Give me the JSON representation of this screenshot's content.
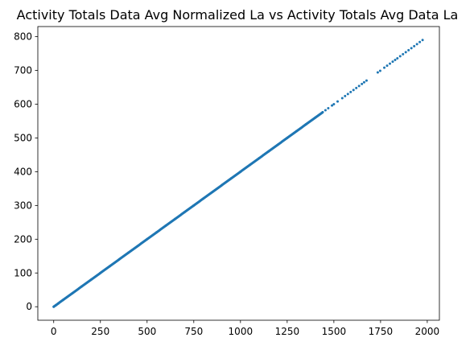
{
  "chart_data": {
    "type": "scatter",
    "title": "Activity Totals Data Avg Normalized La vs Activity Totals Avg Data La",
    "xlabel": "",
    "ylabel": "",
    "xlim": [
      -85,
      2065
    ],
    "ylim": [
      -40,
      830
    ],
    "xticks": [
      0,
      250,
      500,
      750,
      1000,
      1250,
      1500,
      1750,
      2000
    ],
    "yticks": [
      0,
      100,
      200,
      300,
      400,
      500,
      600,
      700,
      800
    ],
    "xtick_labels": [
      "0",
      "250",
      "500",
      "750",
      "1000",
      "1250",
      "1500",
      "1750",
      "2000"
    ],
    "ytick_labels": [
      "0",
      "100",
      "200",
      "300",
      "400",
      "500",
      "600",
      "700",
      "800"
    ],
    "grid": false,
    "legend": "none",
    "series": [
      {
        "color": "#1f77b4",
        "points": [
          [
            0,
            0
          ],
          [
            5,
            2
          ],
          [
            12,
            4.8
          ],
          [
            25,
            10
          ],
          [
            50,
            20
          ],
          [
            100,
            40
          ],
          [
            150,
            60
          ],
          [
            200,
            80
          ],
          [
            250,
            100
          ],
          [
            300,
            120
          ],
          [
            350,
            140
          ],
          [
            400,
            160
          ],
          [
            450,
            180
          ],
          [
            500,
            200
          ],
          [
            550,
            220
          ],
          [
            600,
            240
          ],
          [
            650,
            260
          ],
          [
            700,
            280
          ],
          [
            750,
            300
          ],
          [
            800,
            320
          ],
          [
            850,
            340
          ],
          [
            900,
            360
          ],
          [
            950,
            380
          ],
          [
            1000,
            400
          ],
          [
            1050,
            420
          ],
          [
            1100,
            440
          ],
          [
            1150,
            460
          ],
          [
            1200,
            480
          ],
          [
            1250,
            500
          ],
          [
            1300,
            520
          ],
          [
            1350,
            540
          ],
          [
            1400,
            560
          ],
          [
            1440,
            576
          ],
          [
            1455,
            582
          ],
          [
            1470,
            588
          ],
          [
            1490,
            596
          ],
          [
            1500,
            600
          ],
          [
            1520,
            608
          ],
          [
            1545,
            618
          ],
          [
            1560,
            624
          ],
          [
            1575,
            630
          ],
          [
            1590,
            636
          ],
          [
            1605,
            642
          ],
          [
            1620,
            648
          ],
          [
            1635,
            654
          ],
          [
            1650,
            660
          ],
          [
            1662,
            665
          ],
          [
            1675,
            670
          ],
          [
            1735,
            694
          ],
          [
            1748,
            699
          ],
          [
            1770,
            708
          ],
          [
            1785,
            714
          ],
          [
            1800,
            720
          ],
          [
            1815,
            726
          ],
          [
            1828,
            731
          ],
          [
            1840,
            736
          ],
          [
            1855,
            742
          ],
          [
            1870,
            748
          ],
          [
            1885,
            754
          ],
          [
            1900,
            760
          ],
          [
            1915,
            766
          ],
          [
            1930,
            772
          ],
          [
            1945,
            778
          ],
          [
            1960,
            784
          ],
          [
            1975,
            790
          ]
        ]
      }
    ]
  }
}
